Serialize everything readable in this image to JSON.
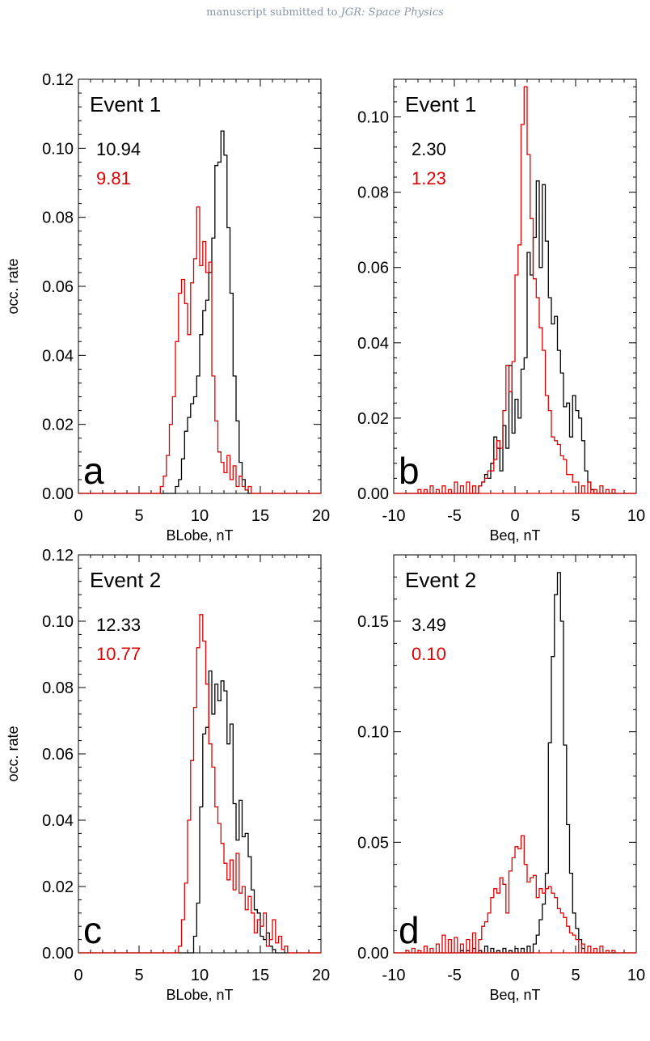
{
  "header": {
    "prefix": "manuscript submitted to ",
    "journal": "JGR: Space Physics"
  },
  "colors": {
    "series_total": "#000000",
    "series_event": "#e00000",
    "axis": "#000000"
  },
  "chart_data": [
    {
      "panel": "a",
      "type": "line",
      "step": true,
      "event_label": "Event 1",
      "xlabel": "BLobe, nT",
      "ylabel": "occ. rate",
      "xlim": [
        0,
        20
      ],
      "ylim": [
        0,
        0.12
      ],
      "xticks": [
        0,
        5,
        10,
        15,
        20
      ],
      "yticks": [
        0,
        0.02,
        0.04,
        0.06,
        0.08,
        0.1,
        0.12
      ],
      "ytick_labels": [
        "0.00",
        "0.02",
        "0.04",
        "0.06",
        "0.08",
        "0.10",
        "0.12"
      ],
      "bin_width": 0.25,
      "means": [
        {
          "value": "10.94",
          "color": "#000000"
        },
        {
          "value": "9.81",
          "color": "#e00000"
        }
      ],
      "series": [
        {
          "color": "#000000",
          "x": [
            8.0,
            8.25,
            8.5,
            8.75,
            9.0,
            9.25,
            9.5,
            9.75,
            10.0,
            10.25,
            10.5,
            10.75,
            11.0,
            11.25,
            11.5,
            11.75,
            12.0,
            12.25,
            12.5,
            12.75,
            13.0,
            13.25,
            13.5,
            13.75
          ],
          "y": [
            0.002,
            0.004,
            0.01,
            0.018,
            0.022,
            0.026,
            0.028,
            0.034,
            0.046,
            0.053,
            0.056,
            0.064,
            0.074,
            0.095,
            0.096,
            0.105,
            0.098,
            0.077,
            0.058,
            0.034,
            0.021,
            0.009,
            0.004,
            0.001
          ]
        },
        {
          "color": "#e00000",
          "x": [
            6.75,
            7.0,
            7.25,
            7.5,
            7.75,
            8.0,
            8.25,
            8.5,
            8.75,
            9.0,
            9.25,
            9.5,
            9.75,
            10.0,
            10.25,
            10.5,
            10.75,
            11.0,
            11.25,
            11.5,
            11.75,
            12.0,
            12.25,
            12.5,
            12.75,
            13.0,
            13.25,
            13.5,
            13.75,
            14.0
          ],
          "y": [
            0.002,
            0.005,
            0.011,
            0.02,
            0.028,
            0.044,
            0.058,
            0.062,
            0.055,
            0.046,
            0.061,
            0.068,
            0.083,
            0.066,
            0.073,
            0.064,
            0.067,
            0.034,
            0.021,
            0.012,
            0.009,
            0.006,
            0.011,
            0.004,
            0.008,
            0.002,
            0.005,
            0.002,
            0.001,
            0.002
          ]
        }
      ]
    },
    {
      "panel": "b",
      "type": "line",
      "step": true,
      "event_label": "Event 1",
      "xlabel": "Beq, nT",
      "ylabel": "",
      "xlim": [
        -10,
        10
      ],
      "ylim": [
        0,
        0.11
      ],
      "xticks": [
        -10,
        -5,
        0,
        5,
        10
      ],
      "yticks": [
        0,
        0.02,
        0.04,
        0.06,
        0.08,
        0.1
      ],
      "ytick_labels": [
        "0.00",
        "0.02",
        "0.04",
        "0.06",
        "0.08",
        "0.10"
      ],
      "bin_width": 0.25,
      "means": [
        {
          "value": "2.30",
          "color": "#000000"
        },
        {
          "value": "1.23",
          "color": "#e00000"
        }
      ],
      "series": [
        {
          "color": "#000000",
          "x": [
            -3.0,
            -2.75,
            -2.5,
            -2.25,
            -2.0,
            -1.75,
            -1.5,
            -1.25,
            -1.0,
            -0.75,
            -0.5,
            -0.25,
            0.0,
            0.25,
            0.5,
            0.75,
            1.0,
            1.25,
            1.5,
            1.75,
            2.0,
            2.25,
            2.5,
            2.75,
            3.0,
            3.25,
            3.5,
            3.75,
            4.0,
            4.25,
            4.5,
            4.75,
            5.0,
            5.25,
            5.5,
            5.75,
            6.0,
            6.25
          ],
          "y": [
            0.002,
            0.003,
            0.005,
            0.004,
            0.008,
            0.015,
            0.012,
            0.006,
            0.018,
            0.012,
            0.034,
            0.016,
            0.025,
            0.02,
            0.033,
            0.036,
            0.064,
            0.058,
            0.068,
            0.083,
            0.06,
            0.082,
            0.067,
            0.052,
            0.045,
            0.047,
            0.038,
            0.032,
            0.023,
            0.024,
            0.015,
            0.026,
            0.022,
            0.02,
            0.014,
            0.006,
            0.003,
            0.001
          ]
        },
        {
          "color": "#e00000",
          "x": [
            -8.0,
            -7.5,
            -7.0,
            -6.5,
            -6.0,
            -5.5,
            -5.0,
            -4.5,
            -4.0,
            -3.5,
            -3.0,
            -2.75,
            -2.5,
            -2.25,
            -2.0,
            -1.75,
            -1.5,
            -1.25,
            -1.0,
            -0.75,
            -0.5,
            -0.25,
            0.0,
            0.25,
            0.5,
            0.75,
            1.0,
            1.25,
            1.5,
            1.75,
            2.0,
            2.25,
            2.5,
            2.75,
            3.0,
            3.25,
            3.5,
            3.75,
            4.0,
            4.25,
            4.5,
            4.75,
            5.0,
            5.5,
            6.0,
            6.5,
            7.0,
            7.5,
            8.0
          ],
          "y": [
            0.001,
            0.001,
            0.002,
            0.001,
            0.002,
            0.001,
            0.003,
            0.002,
            0.003,
            0.002,
            0.002,
            0.003,
            0.004,
            0.006,
            0.006,
            0.009,
            0.014,
            0.012,
            0.022,
            0.034,
            0.027,
            0.035,
            0.058,
            0.066,
            0.098,
            0.108,
            0.09,
            0.073,
            0.057,
            0.052,
            0.044,
            0.038,
            0.026,
            0.022,
            0.015,
            0.014,
            0.013,
            0.01,
            0.009,
            0.005,
            0.005,
            0.003,
            0.003,
            0.002,
            0.003,
            0.001,
            0.002,
            0.001,
            0.001
          ]
        }
      ]
    },
    {
      "panel": "c",
      "type": "line",
      "step": true,
      "event_label": "Event 2",
      "xlabel": "BLobe, nT",
      "ylabel": "occ. rate",
      "xlim": [
        0,
        20
      ],
      "ylim": [
        0,
        0.12
      ],
      "xticks": [
        0,
        5,
        10,
        15,
        20
      ],
      "yticks": [
        0,
        0.02,
        0.04,
        0.06,
        0.08,
        0.1,
        0.12
      ],
      "ytick_labels": [
        "0.00",
        "0.02",
        "0.04",
        "0.06",
        "0.08",
        "0.10",
        "0.12"
      ],
      "bin_width": 0.25,
      "means": [
        {
          "value": "12.33",
          "color": "#000000"
        },
        {
          "value": "10.77",
          "color": "#e00000"
        }
      ],
      "series": [
        {
          "color": "#000000",
          "x": [
            9.5,
            9.75,
            10.0,
            10.25,
            10.5,
            10.75,
            11.0,
            11.25,
            11.5,
            11.75,
            12.0,
            12.25,
            12.5,
            12.75,
            13.0,
            13.25,
            13.5,
            13.75,
            14.0,
            14.25,
            14.5,
            14.75,
            15.0,
            15.25,
            15.5,
            15.75,
            16.0
          ],
          "y": [
            0.005,
            0.015,
            0.044,
            0.066,
            0.068,
            0.085,
            0.072,
            0.081,
            0.076,
            0.082,
            0.079,
            0.063,
            0.069,
            0.045,
            0.034,
            0.046,
            0.035,
            0.036,
            0.029,
            0.019,
            0.013,
            0.012,
            0.005,
            0.004,
            0.006,
            0.002,
            0.001
          ]
        },
        {
          "color": "#e00000",
          "x": [
            8.25,
            8.5,
            8.75,
            9.0,
            9.25,
            9.5,
            9.75,
            10.0,
            10.25,
            10.5,
            10.75,
            11.0,
            11.25,
            11.5,
            11.75,
            12.0,
            12.25,
            12.5,
            12.75,
            13.0,
            13.25,
            13.5,
            13.75,
            14.0,
            14.25,
            14.5,
            14.75,
            15.0,
            15.25,
            15.5,
            15.75,
            16.0,
            16.25,
            16.5,
            16.75,
            17.0
          ],
          "y": [
            0.002,
            0.01,
            0.021,
            0.04,
            0.058,
            0.074,
            0.092,
            0.102,
            0.094,
            0.081,
            0.063,
            0.056,
            0.044,
            0.039,
            0.033,
            0.027,
            0.022,
            0.028,
            0.019,
            0.03,
            0.018,
            0.02,
            0.013,
            0.017,
            0.012,
            0.006,
            0.01,
            0.008,
            0.012,
            0.002,
            0.004,
            0.01,
            0.003,
            0.005,
            0.001,
            0.002
          ]
        }
      ]
    },
    {
      "panel": "d",
      "type": "line",
      "step": true,
      "event_label": "Event 2",
      "xlabel": "Beq, nT",
      "ylabel": "",
      "xlim": [
        -10,
        10
      ],
      "ylim": [
        0,
        0.18
      ],
      "xticks": [
        -10,
        -5,
        0,
        5,
        10
      ],
      "yticks": [
        0,
        0.05,
        0.1,
        0.15
      ],
      "ytick_labels": [
        "0.00",
        "0.05",
        "0.10",
        "0.15"
      ],
      "bin_width": 0.25,
      "means": [
        {
          "value": "3.49",
          "color": "#000000"
        },
        {
          "value": "0.10",
          "color": "#e00000"
        }
      ],
      "series": [
        {
          "color": "#000000",
          "x": [
            -4.5,
            -4.0,
            -3.5,
            -3.0,
            -2.5,
            -2.0,
            -1.5,
            -1.0,
            -0.5,
            0.0,
            0.5,
            1.0,
            1.5,
            1.75,
            2.0,
            2.25,
            2.5,
            2.75,
            3.0,
            3.25,
            3.5,
            3.75,
            4.0,
            4.25,
            4.5,
            4.75,
            5.0,
            5.25,
            5.5
          ],
          "y": [
            0.001,
            0.001,
            0.002,
            0.001,
            0.003,
            0.002,
            0.001,
            0.002,
            0.001,
            0.002,
            0.002,
            0.003,
            0.004,
            0.008,
            0.015,
            0.022,
            0.036,
            0.095,
            0.134,
            0.162,
            0.172,
            0.15,
            0.094,
            0.058,
            0.036,
            0.018,
            0.011,
            0.006,
            0.002
          ]
        },
        {
          "color": "#e00000",
          "x": [
            -9.0,
            -8.5,
            -8.0,
            -7.5,
            -7.0,
            -6.5,
            -6.0,
            -5.5,
            -5.0,
            -4.5,
            -4.0,
            -3.5,
            -3.0,
            -2.75,
            -2.5,
            -2.25,
            -2.0,
            -1.75,
            -1.5,
            -1.25,
            -1.0,
            -0.75,
            -0.5,
            -0.25,
            0.0,
            0.25,
            0.5,
            0.75,
            1.0,
            1.25,
            1.5,
            1.75,
            2.0,
            2.25,
            2.5,
            2.75,
            3.0,
            3.25,
            3.5,
            3.75,
            4.0,
            4.25,
            4.5,
            4.75,
            5.0,
            5.5,
            6.0,
            6.5,
            7.0,
            7.5,
            8.0
          ],
          "y": [
            0.001,
            0.002,
            0.001,
            0.003,
            0.002,
            0.004,
            0.008,
            0.006,
            0.007,
            0.004,
            0.006,
            0.009,
            0.006,
            0.012,
            0.014,
            0.018,
            0.025,
            0.029,
            0.027,
            0.034,
            0.031,
            0.018,
            0.037,
            0.043,
            0.048,
            0.047,
            0.053,
            0.04,
            0.032,
            0.034,
            0.035,
            0.025,
            0.029,
            0.027,
            0.029,
            0.03,
            0.027,
            0.025,
            0.02,
            0.018,
            0.016,
            0.012,
            0.009,
            0.008,
            0.006,
            0.004,
            0.003,
            0.002,
            0.003,
            0.001,
            0.001
          ]
        }
      ]
    }
  ]
}
